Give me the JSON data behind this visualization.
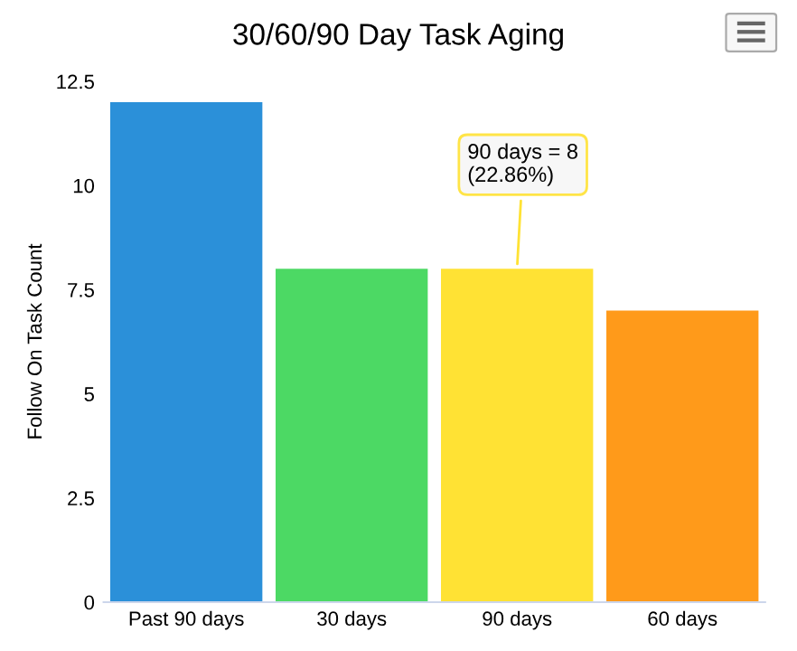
{
  "chart_data": {
    "type": "bar",
    "title": "30/60/90 Day Task Aging",
    "ylabel": "Follow On Task Count",
    "categories": [
      "Past 90 days",
      "30 days",
      "90 days",
      "60 days"
    ],
    "values": [
      12,
      8,
      8,
      7
    ],
    "colors": [
      "#2b90d9",
      "#4cd964",
      "#ffe234",
      "#ff9a1a"
    ],
    "ylim": [
      0,
      12.5
    ],
    "yticks": [
      0,
      2.5,
      5,
      7.5,
      10,
      12.5
    ],
    "grid": false,
    "annotations": [
      {
        "text": "90 days = 8\n(22.86%)",
        "x": "90 days",
        "y": 8
      }
    ]
  }
}
